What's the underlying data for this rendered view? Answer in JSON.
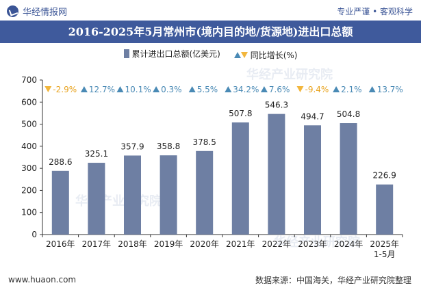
{
  "header": {
    "brand": "华经情报网",
    "slogan": "专业严谨 • 客观科学",
    "title": "2016-2025年5月常州市(境内目的地/货源地)进出口总额"
  },
  "legend": {
    "bar_label": "累计进出口总额(亿美元)",
    "growth_label": "同比增长(%)"
  },
  "watermark": "华经产业研究院",
  "footer": {
    "website": "www.huaon.com",
    "source": "数据来源：中国海关，华经产业研究院整理"
  },
  "colors": {
    "bar": "#6e7fa3",
    "up": "#4a8ab5",
    "down": "#f2b63c",
    "title_bg": "#3f5a9c"
  },
  "chart_data": {
    "type": "bar",
    "categories": [
      "2016年",
      "2017年",
      "2018年",
      "2019年",
      "2020年",
      "2021年",
      "2022年",
      "2023年",
      "2024年",
      "2025年\n1-5月"
    ],
    "series": [
      {
        "name": "累计进出口总额(亿美元)",
        "values": [
          288.6,
          325.1,
          357.9,
          358.8,
          378.5,
          507.8,
          546.3,
          494.7,
          504.8,
          226.9
        ]
      }
    ],
    "growth": {
      "name": "同比增长(%)",
      "values": [
        -2.9,
        12.7,
        10.1,
        0.3,
        5.5,
        34.2,
        7.6,
        -9.4,
        2.1,
        13.7
      ]
    },
    "ylim": [
      0,
      700
    ],
    "yticks": [
      0,
      100,
      200,
      300,
      400,
      500,
      600,
      700
    ],
    "grid": false,
    "legend_position": "top-center"
  }
}
